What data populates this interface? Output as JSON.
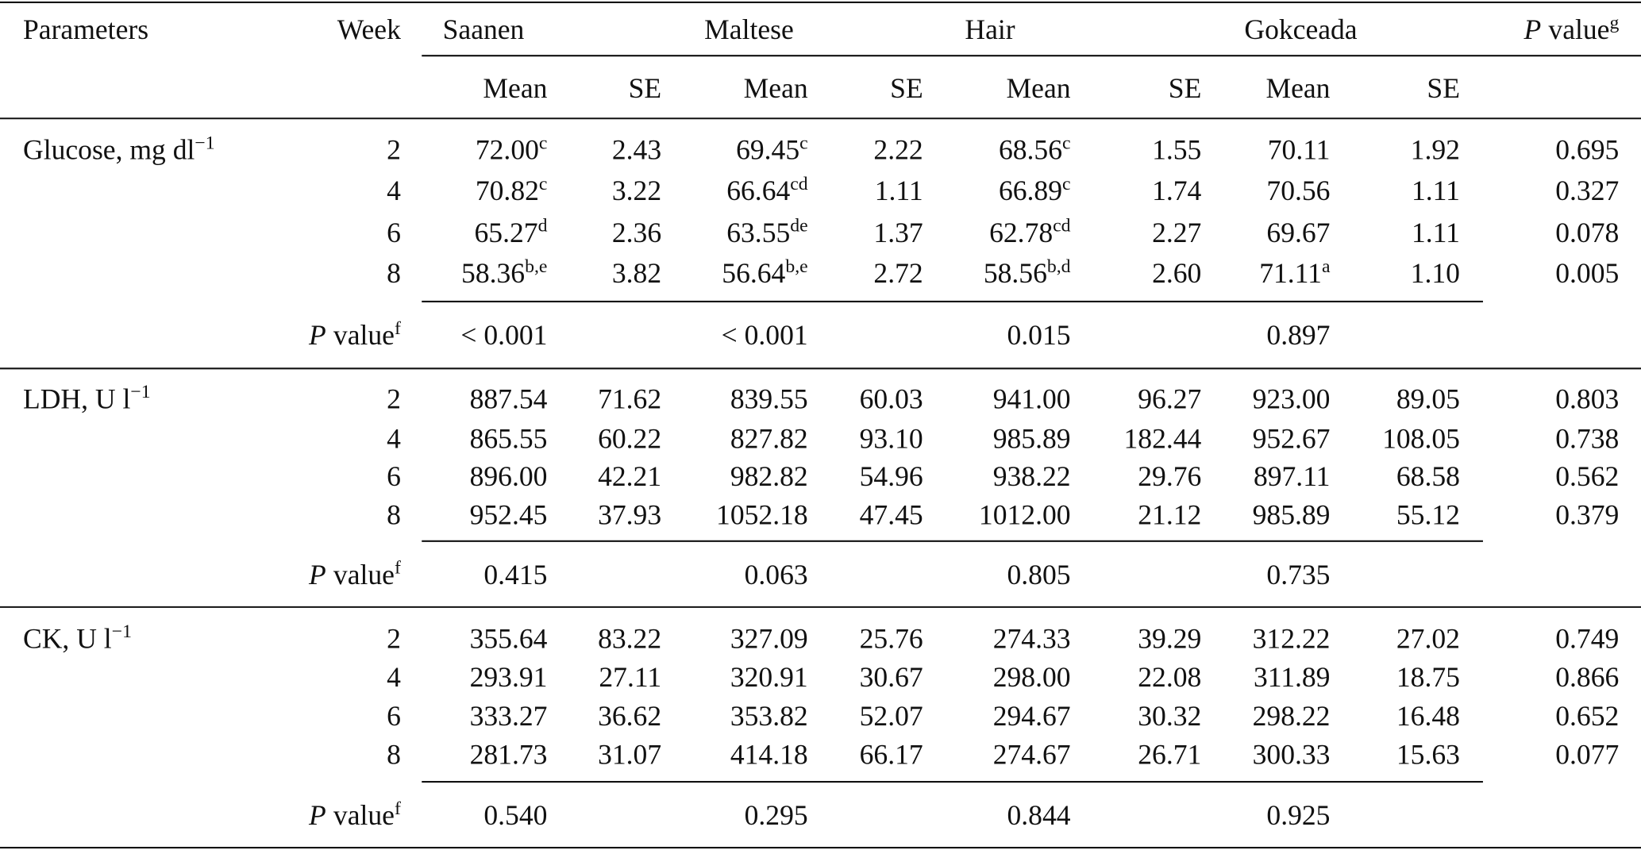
{
  "header": {
    "parameters": "Parameters",
    "week": "Week",
    "breeds": [
      "Saanen",
      "Maltese",
      "Hair",
      "Gokceada"
    ],
    "subheaders": [
      "Mean",
      "SE",
      "Mean",
      "SE",
      "Mean",
      "SE",
      "Mean",
      "SE"
    ],
    "p_value": {
      "italic": "P",
      "text": "value",
      "sup": "g"
    }
  },
  "sections": [
    {
      "parameter": {
        "text": "Glucose, mg dl",
        "sup": "−1"
      },
      "rows": [
        {
          "week": "2",
          "breeds": [
            {
              "mean": "72.00",
              "mean_sup": "c",
              "se": "2.43"
            },
            {
              "mean": "69.45",
              "mean_sup": "c",
              "se": "2.22"
            },
            {
              "mean": "68.56",
              "mean_sup": "c",
              "se": "1.55"
            },
            {
              "mean": "70.11",
              "se": "1.92"
            }
          ],
          "p": "0.695"
        },
        {
          "week": "4",
          "breeds": [
            {
              "mean": "70.82",
              "mean_sup": "c",
              "se": "3.22"
            },
            {
              "mean": "66.64",
              "mean_sup": "cd",
              "se": "1.11"
            },
            {
              "mean": "66.89",
              "mean_sup": "c",
              "se": "1.74"
            },
            {
              "mean": "70.56",
              "se": "1.11"
            }
          ],
          "p": "0.327"
        },
        {
          "week": "6",
          "breeds": [
            {
              "mean": "65.27",
              "mean_sup": "d",
              "se": "2.36"
            },
            {
              "mean": "63.55",
              "mean_sup": "de",
              "se": "1.37"
            },
            {
              "mean": "62.78",
              "mean_sup": "cd",
              "se": "2.27"
            },
            {
              "mean": "69.67",
              "se": "1.11"
            }
          ],
          "p": "0.078"
        },
        {
          "week": "8",
          "breeds": [
            {
              "mean": "58.36",
              "mean_sup": "b,e",
              "se": "3.82"
            },
            {
              "mean": "56.64",
              "mean_sup": "b,e",
              "se": "2.72"
            },
            {
              "mean": "58.56",
              "mean_sup": "b,d",
              "se": "2.60"
            },
            {
              "mean": "71.11",
              "mean_sup": "a",
              "se": "1.10"
            }
          ],
          "p": "0.005"
        }
      ],
      "p_row": {
        "label": {
          "italic": "P",
          "text": "value",
          "sup": "f"
        },
        "values": [
          "< 0.001",
          "< 0.001",
          "0.015",
          "0.897"
        ]
      }
    },
    {
      "parameter": {
        "text": "LDH, U l",
        "sup": "−1"
      },
      "rows": [
        {
          "week": "2",
          "breeds": [
            {
              "mean": "887.54",
              "se": "71.62"
            },
            {
              "mean": "839.55",
              "se": "60.03"
            },
            {
              "mean": "941.00",
              "se": "96.27"
            },
            {
              "mean": "923.00",
              "se": "89.05"
            }
          ],
          "p": "0.803"
        },
        {
          "week": "4",
          "breeds": [
            {
              "mean": "865.55",
              "se": "60.22"
            },
            {
              "mean": "827.82",
              "se": "93.10"
            },
            {
              "mean": "985.89",
              "se": "182.44"
            },
            {
              "mean": "952.67",
              "se": "108.05"
            }
          ],
          "p": "0.738"
        },
        {
          "week": "6",
          "breeds": [
            {
              "mean": "896.00",
              "se": "42.21"
            },
            {
              "mean": "982.82",
              "se": "54.96"
            },
            {
              "mean": "938.22",
              "se": "29.76"
            },
            {
              "mean": "897.11",
              "se": "68.58"
            }
          ],
          "p": "0.562"
        },
        {
          "week": "8",
          "breeds": [
            {
              "mean": "952.45",
              "se": "37.93"
            },
            {
              "mean": "1052.18",
              "se": "47.45"
            },
            {
              "mean": "1012.00",
              "se": "21.12"
            },
            {
              "mean": "985.89",
              "se": "55.12"
            }
          ],
          "p": "0.379"
        }
      ],
      "p_row": {
        "label": {
          "italic": "P",
          "text": "value",
          "sup": "f"
        },
        "values": [
          "0.415",
          "0.063",
          "0.805",
          "0.735"
        ]
      }
    },
    {
      "parameter": {
        "text": "CK, U l",
        "sup": "−1"
      },
      "rows": [
        {
          "week": "2",
          "breeds": [
            {
              "mean": "355.64",
              "se": "83.22"
            },
            {
              "mean": "327.09",
              "se": "25.76"
            },
            {
              "mean": "274.33",
              "se": "39.29"
            },
            {
              "mean": "312.22",
              "se": "27.02"
            }
          ],
          "p": "0.749"
        },
        {
          "week": "4",
          "breeds": [
            {
              "mean": "293.91",
              "se": "27.11"
            },
            {
              "mean": "320.91",
              "se": "30.67"
            },
            {
              "mean": "298.00",
              "se": "22.08"
            },
            {
              "mean": "311.89",
              "se": "18.75"
            }
          ],
          "p": "0.866"
        },
        {
          "week": "6",
          "breeds": [
            {
              "mean": "333.27",
              "se": "36.62"
            },
            {
              "mean": "353.82",
              "se": "52.07"
            },
            {
              "mean": "294.67",
              "se": "30.32"
            },
            {
              "mean": "298.22",
              "se": "16.48"
            }
          ],
          "p": "0.652"
        },
        {
          "week": "8",
          "breeds": [
            {
              "mean": "281.73",
              "se": "31.07"
            },
            {
              "mean": "414.18",
              "se": "66.17"
            },
            {
              "mean": "274.67",
              "se": "26.71"
            },
            {
              "mean": "300.33",
              "se": "15.63"
            }
          ],
          "p": "0.077"
        }
      ],
      "p_row": {
        "label": {
          "italic": "P",
          "text": "value",
          "sup": "f"
        },
        "values": [
          "0.540",
          "0.295",
          "0.844",
          "0.925"
        ]
      }
    }
  ]
}
